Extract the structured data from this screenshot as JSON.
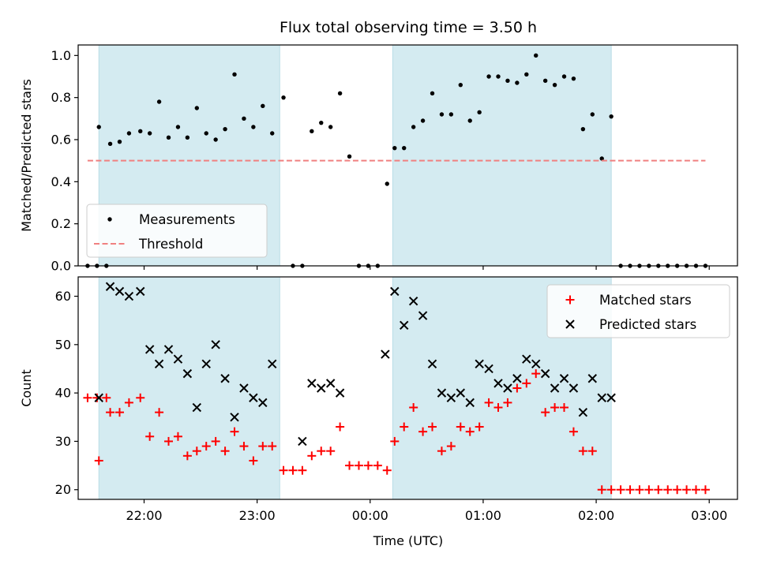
{
  "title": "Flux total observing time = 3.50 h",
  "xlabel": "Time (UTC)",
  "x_ticks": [
    "22:00",
    "23:00",
    "00:00",
    "01:00",
    "02:00",
    "03:00"
  ],
  "colors": {
    "shade": "#d4ebf1",
    "measurement": "#000000",
    "threshold": "#f08080",
    "matched": "#ff0000",
    "predicted": "#000000"
  },
  "chart_data": [
    {
      "type": "scatter",
      "title": "Flux total observing time = 3.50 h",
      "xlabel": "Time (UTC)",
      "ylabel": "Matched/Predicted stars",
      "xlim": [
        "21:25",
        "03:15"
      ],
      "ylim": [
        0,
        1.05
      ],
      "y_ticks": [
        "0.0",
        "0.2",
        "0.4",
        "0.6",
        "0.8",
        "1.0"
      ],
      "legend_position": "lower-left",
      "shaded_intervals": [
        [
          "21:36",
          "23:12"
        ],
        [
          "00:12",
          "02:08"
        ]
      ],
      "series": [
        {
          "name": "Measurements",
          "marker": "dot",
          "x": [
            "21:30",
            "21:35",
            "21:40",
            "21:36",
            "21:42",
            "21:47",
            "21:52",
            "21:58",
            "22:03",
            "22:08",
            "22:13",
            "22:18",
            "22:23",
            "22:28",
            "22:33",
            "22:38",
            "22:43",
            "22:48",
            "22:53",
            "22:58",
            "23:03",
            "23:08",
            "23:14",
            "23:19",
            "23:24",
            "23:29",
            "23:34",
            "23:39",
            "23:44",
            "23:49",
            "23:54",
            "23:59",
            "00:04",
            "00:09",
            "00:13",
            "00:18",
            "00:23",
            "00:28",
            "00:33",
            "00:38",
            "00:43",
            "00:48",
            "00:53",
            "00:58",
            "01:03",
            "01:08",
            "01:13",
            "01:18",
            "01:23",
            "01:28",
            "01:33",
            "01:38",
            "01:43",
            "01:48",
            "01:53",
            "01:58",
            "02:03",
            "02:08",
            "02:13",
            "02:18",
            "02:23",
            "02:28",
            "02:33",
            "02:38",
            "02:43",
            "02:48",
            "02:53",
            "02:58"
          ],
          "y": [
            0,
            0,
            0,
            0.66,
            0.58,
            0.59,
            0.63,
            0.64,
            0.63,
            0.78,
            0.61,
            0.66,
            0.61,
            0.75,
            0.63,
            0.6,
            0.65,
            0.91,
            0.7,
            0.66,
            0.76,
            0.63,
            0.8,
            0,
            0,
            0.64,
            0.68,
            0.66,
            0.82,
            0.52,
            0,
            0,
            0,
            0.39,
            0.56,
            0.56,
            0.66,
            0.69,
            0.82,
            0.72,
            0.72,
            0.86,
            0.69,
            0.73,
            0.9,
            0.9,
            0.88,
            0.87,
            0.91,
            1.0,
            0.88,
            0.86,
            0.9,
            0.89,
            0.65,
            0.72,
            0.51,
            0.71,
            0,
            0,
            0,
            0,
            0,
            0,
            0,
            0,
            0,
            0
          ]
        },
        {
          "name": "Threshold",
          "type": "line",
          "style": "dashed",
          "x": [
            "21:30",
            "02:58"
          ],
          "y": [
            0.5,
            0.5
          ]
        }
      ]
    },
    {
      "type": "scatter",
      "xlabel": "Time (UTC)",
      "ylabel": "Count",
      "xlim": [
        "21:25",
        "03:15"
      ],
      "ylim": [
        18,
        64
      ],
      "y_ticks": [
        "20",
        "30",
        "40",
        "50",
        "60"
      ],
      "legend_position": "top-right",
      "shaded_intervals": [
        [
          "21:36",
          "23:12"
        ],
        [
          "00:12",
          "02:08"
        ]
      ],
      "series": [
        {
          "name": "Matched stars",
          "marker": "plus",
          "x": [
            "21:30",
            "21:35",
            "21:40",
            "21:36",
            "21:42",
            "21:47",
            "21:52",
            "21:58",
            "22:03",
            "22:08",
            "22:13",
            "22:18",
            "22:23",
            "22:28",
            "22:33",
            "22:38",
            "22:43",
            "22:48",
            "22:53",
            "22:58",
            "23:03",
            "23:08",
            "23:14",
            "23:19",
            "23:24",
            "23:29",
            "23:34",
            "23:39",
            "23:44",
            "23:49",
            "23:54",
            "23:59",
            "00:04",
            "00:09",
            "00:13",
            "00:18",
            "00:23",
            "00:28",
            "00:33",
            "00:38",
            "00:43",
            "00:48",
            "00:53",
            "00:58",
            "01:03",
            "01:08",
            "01:13",
            "01:18",
            "01:23",
            "01:28",
            "01:33",
            "01:38",
            "01:43",
            "01:48",
            "01:53",
            "01:58",
            "02:03",
            "02:08",
            "02:13",
            "02:18",
            "02:23",
            "02:28",
            "02:33",
            "02:38",
            "02:43",
            "02:48",
            "02:53",
            "02:58"
          ],
          "y": [
            39,
            39,
            39,
            26,
            36,
            36,
            38,
            39,
            31,
            36,
            30,
            31,
            27,
            28,
            29,
            30,
            28,
            32,
            29,
            26,
            29,
            29,
            24,
            24,
            24,
            27,
            28,
            28,
            33,
            25,
            25,
            25,
            25,
            24,
            30,
            33,
            37,
            32,
            33,
            28,
            29,
            33,
            32,
            33,
            38,
            37,
            38,
            41,
            42,
            44,
            36,
            37,
            37,
            32,
            28,
            28,
            20,
            20,
            20,
            20,
            20,
            20,
            20,
            20,
            20,
            20,
            20,
            20
          ]
        },
        {
          "name": "Predicted stars",
          "marker": "x",
          "x": [
            "21:36",
            "21:42",
            "21:47",
            "21:52",
            "21:58",
            "22:03",
            "22:08",
            "22:13",
            "22:18",
            "22:23",
            "22:28",
            "22:33",
            "22:38",
            "22:43",
            "22:48",
            "22:53",
            "22:58",
            "23:03",
            "23:08",
            "23:24",
            "23:29",
            "23:34",
            "23:39",
            "23:44",
            "00:08",
            "00:13",
            "00:18",
            "00:23",
            "00:28",
            "00:33",
            "00:38",
            "00:43",
            "00:48",
            "00:53",
            "00:58",
            "01:03",
            "01:08",
            "01:13",
            "01:18",
            "01:23",
            "01:28",
            "01:33",
            "01:38",
            "01:43",
            "01:48",
            "01:53",
            "01:58",
            "02:03",
            "02:08"
          ],
          "y": [
            39,
            62,
            61,
            60,
            61,
            49,
            46,
            49,
            47,
            44,
            37,
            46,
            50,
            43,
            35,
            41,
            39,
            38,
            46,
            30,
            42,
            41,
            42,
            40,
            48,
            61,
            54,
            59,
            56,
            46,
            40,
            39,
            40,
            38,
            46,
            45,
            42,
            41,
            43,
            47,
            46,
            44,
            41,
            43,
            41,
            36,
            43,
            39,
            39
          ]
        }
      ]
    }
  ]
}
